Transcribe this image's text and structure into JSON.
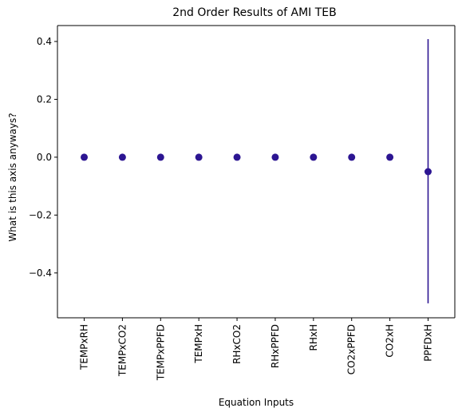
{
  "chart_data": {
    "type": "scatter",
    "title": "2nd Order Results of AMI TEB",
    "xlabel": "Equation Inputs",
    "ylabel": "What is this axis anyways?",
    "categories": [
      "TEMPxRH",
      "TEMPxCO2",
      "TEMPxPPFD",
      "TEMPxH",
      "RHxCO2",
      "RHxPPFD",
      "RHxH",
      "CO2xPPFD",
      "CO2xH",
      "PPFDxH"
    ],
    "values": [
      0.0,
      0.0,
      0.0,
      0.0,
      0.0,
      0.0,
      0.0,
      0.0,
      0.0,
      -0.05
    ],
    "error_low": [
      0.0,
      0.0,
      0.0,
      0.0,
      0.0,
      0.0,
      0.0,
      0.0,
      0.0,
      -0.505
    ],
    "error_high": [
      0.0,
      0.0,
      0.0,
      0.0,
      0.0,
      0.0,
      0.0,
      0.0,
      0.0,
      0.408
    ],
    "ylim": [
      -0.555,
      0.455
    ],
    "yticks": [
      -0.4,
      -0.2,
      0.0,
      0.2,
      0.4
    ],
    "ytick_labels": [
      "−0.4",
      "−0.2",
      "0.0",
      "0.2",
      "0.4"
    ],
    "grid": false,
    "legend": "none",
    "marker_color": "#2c1592",
    "axis_color": "#000000"
  }
}
